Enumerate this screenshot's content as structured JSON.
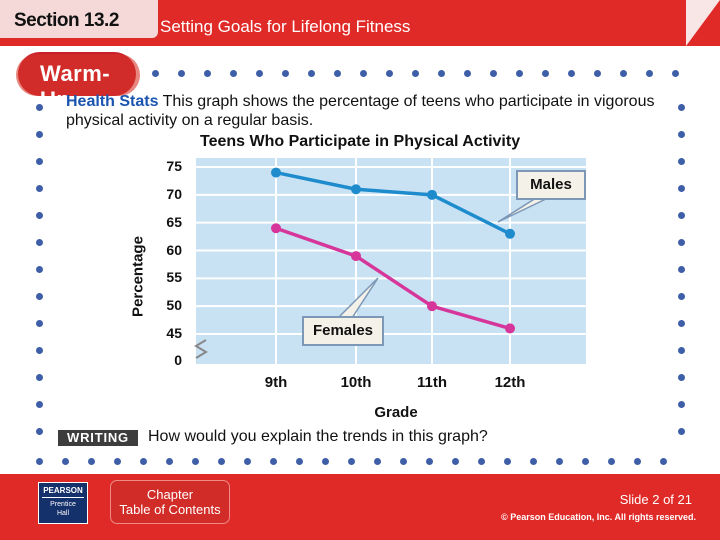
{
  "header": {
    "section": "Section 13.2",
    "title": "Setting Goals for Lifelong Fitness"
  },
  "warmup": {
    "label": "Warm-Up"
  },
  "intro": {
    "lead": "Health Stats",
    "text": "This graph shows the percentage of teens who participate in vigorous physical activity on a regular basis."
  },
  "chart_data": {
    "type": "line",
    "title": "Teens Who Participate in Physical Activity",
    "xlabel": "Grade",
    "ylabel": "Percentage",
    "categories": [
      "9th",
      "10th",
      "11th",
      "12th"
    ],
    "y_ticks": [
      "75",
      "70",
      "65",
      "60",
      "55",
      "50",
      "45",
      "0"
    ],
    "ylim": [
      40,
      77
    ],
    "axis_break": true,
    "series": [
      {
        "name": "Males",
        "color": "#1e8ccc",
        "values": [
          74,
          71,
          70,
          63
        ]
      },
      {
        "name": "Females",
        "color": "#d6359a",
        "values": [
          64,
          59,
          50,
          46
        ]
      }
    ]
  },
  "writing": {
    "badge": "WRITING",
    "question": "How would you explain the trends in this graph?"
  },
  "footer": {
    "publisher": "PEARSON",
    "imprint_line1": "Prentice",
    "imprint_line2": "Hall",
    "toc_line1": "Chapter",
    "toc_line2": "Table of Contents",
    "slide": "Slide 2 of 21",
    "copyright": "© Pearson Education, Inc. All rights reserved."
  },
  "colors": {
    "brand_red": "#e02a27",
    "dot_blue": "#3e5ea7",
    "plot_bg": "#c8e2f4"
  }
}
